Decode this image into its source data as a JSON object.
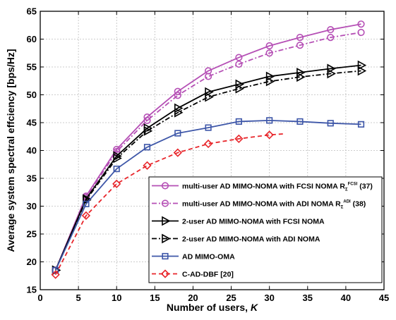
{
  "chart_data": {
    "type": "line",
    "title": "",
    "xlabel": "Number of users, ",
    "xlabel_var": "K",
    "ylabel": "Average system spectral effciency [bps/Hz]",
    "xlim": [
      0,
      45
    ],
    "ylim": [
      15,
      65
    ],
    "xticks": [
      0,
      5,
      10,
      15,
      20,
      25,
      30,
      35,
      40,
      45
    ],
    "yticks": [
      15,
      20,
      25,
      30,
      35,
      40,
      45,
      50,
      55,
      60,
      65
    ],
    "grid": true,
    "legend_position": "bottom-right",
    "series": [
      {
        "name": "multi-user AD MIMO-NOMA with FCSI NOMA R",
        "name_sub": "Σ",
        "name_sup": "FCSI",
        "name_suffix": " (37)",
        "color": "#b54fb5",
        "dash": "solid",
        "marker": "circle",
        "x": [
          2,
          6,
          10,
          14,
          18,
          22,
          26,
          30,
          34,
          38,
          42
        ],
        "y": [
          18.5,
          31.8,
          40.2,
          46.0,
          50.6,
          54.3,
          56.7,
          58.8,
          60.3,
          61.7,
          62.7
        ]
      },
      {
        "name": "multi-user AD MIMO-NOMA with ADI NOMA R",
        "name_sub": "Σ",
        "name_sup": "ADI",
        "name_suffix": " (38)",
        "color": "#b54fb5",
        "dash": "dashdot",
        "marker": "circle",
        "x": [
          2,
          6,
          10,
          14,
          18,
          22,
          26,
          30,
          34,
          38,
          42
        ],
        "y": [
          18.5,
          31.6,
          39.8,
          45.4,
          49.9,
          53.3,
          55.5,
          57.5,
          58.9,
          60.3,
          61.2
        ]
      },
      {
        "name": "2-user AD MIMO-NOMA with FCSI NOMA",
        "color": "#000000",
        "dash": "solid",
        "marker": "triangle-right",
        "x": [
          2,
          6,
          10,
          14,
          18,
          22,
          26,
          30,
          34,
          38,
          42
        ],
        "y": [
          18.5,
          31.3,
          39.0,
          44.0,
          47.6,
          50.5,
          51.9,
          53.3,
          54.0,
          54.7,
          55.3
        ]
      },
      {
        "name": "2-user AD MIMO-NOMA with ADI NOMA",
        "color": "#000000",
        "dash": "dashdot",
        "marker": "triangle-right",
        "x": [
          2,
          6,
          10,
          14,
          18,
          22,
          26,
          30,
          34,
          38,
          42
        ],
        "y": [
          18.5,
          31.1,
          38.6,
          43.5,
          46.8,
          49.6,
          51.1,
          52.4,
          53.2,
          53.8,
          54.3
        ]
      },
      {
        "name": "AD MIMO-OMA",
        "color": "#3d56a8",
        "dash": "solid",
        "marker": "square",
        "x": [
          2,
          6,
          10,
          14,
          18,
          22,
          26,
          30,
          34,
          38,
          42
        ],
        "y": [
          18.5,
          30.4,
          36.7,
          40.6,
          43.1,
          44.1,
          45.2,
          45.4,
          45.2,
          44.9,
          44.7
        ]
      },
      {
        "name": "C-AD-DBF [20]",
        "color": "#e8262b",
        "dash": "dashed",
        "marker": "diamond",
        "x": [
          2,
          6,
          10,
          14,
          18,
          22,
          26,
          30,
          32
        ],
        "y": [
          17.7,
          28.3,
          34.0,
          37.3,
          39.6,
          41.2,
          42.1,
          42.8,
          43.0
        ],
        "marker_x": [
          2,
          6,
          10,
          14,
          18,
          22,
          26,
          30
        ]
      }
    ]
  }
}
